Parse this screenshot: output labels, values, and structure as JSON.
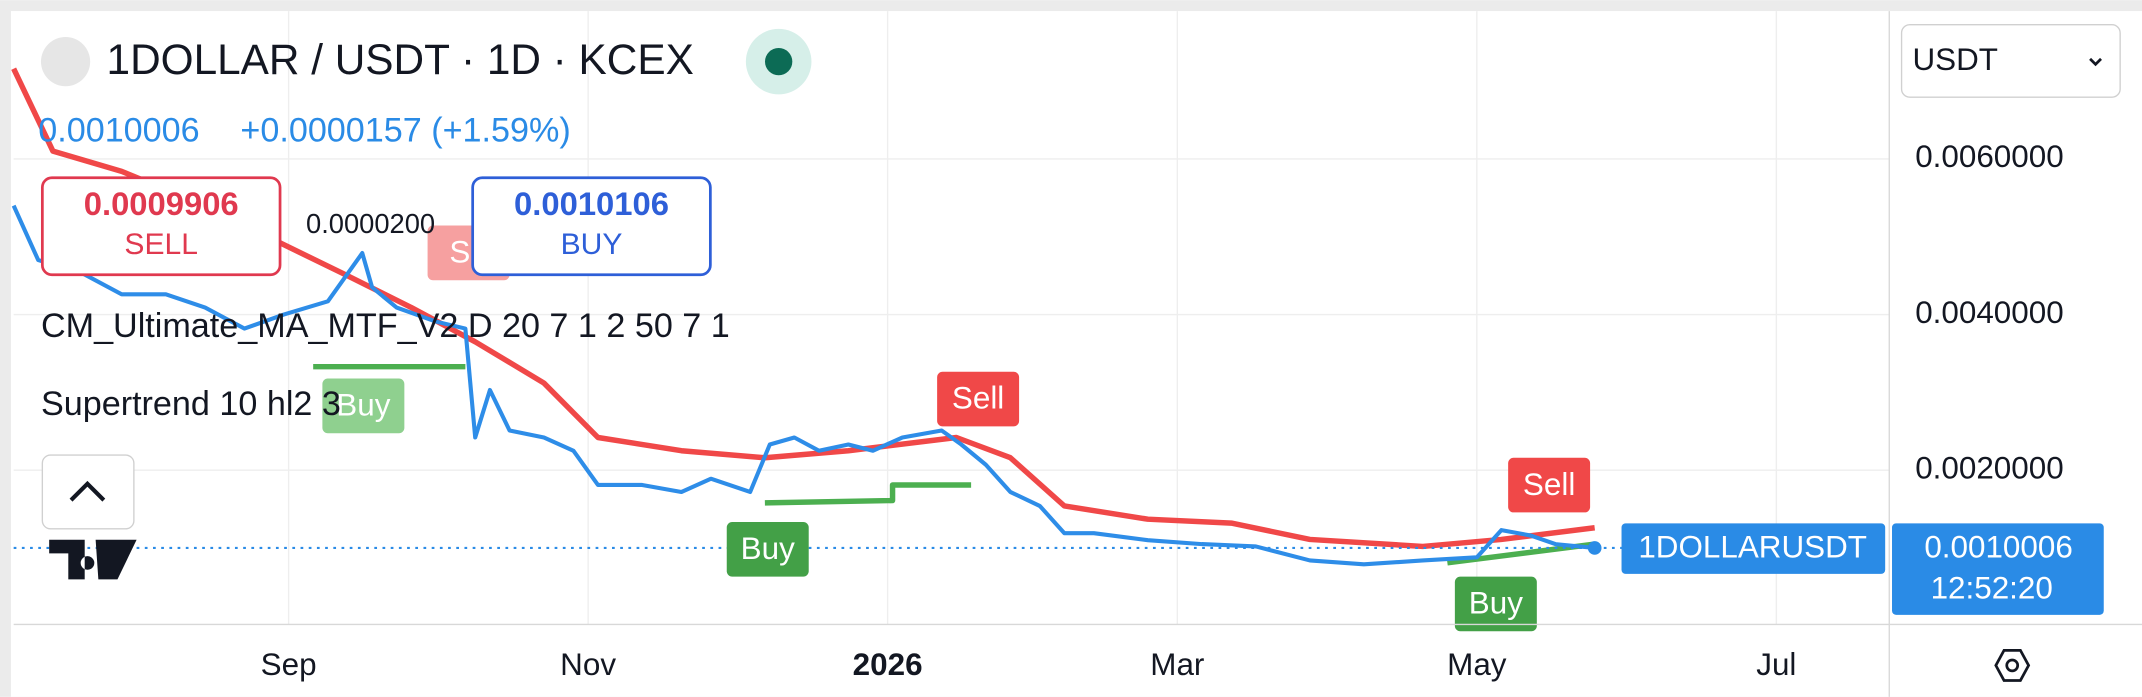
{
  "header": {
    "symbol": "1DOLLAR / USDT · 1D · KCEX",
    "price": "0.0010006",
    "change": "+0.0000157 (+1.59%)"
  },
  "trade": {
    "sell_price": "0.0009906",
    "sell_label": "SELL",
    "spread": "0.0000200",
    "buy_price": "0.0010106",
    "buy_label": "BUY"
  },
  "indicators": [
    "CM_Ultimate_MA_MTF_V2 D 20 7 1 2 50 7 1",
    "Supertrend 10 hl2 3"
  ],
  "currency": "USDT",
  "markers": [
    "Se",
    "Buy",
    "Sell",
    "Buy",
    "Sell",
    "Buy"
  ],
  "price_label": {
    "symbol": "1DOLLARUSDT",
    "countdown": "12:52:20"
  },
  "chart_data": {
    "type": "line",
    "xlim": [
      -56,
      326
    ],
    "xticks": [
      {
        "value": 0,
        "label": "Sep"
      },
      {
        "value": 61,
        "label": "Nov"
      },
      {
        "value": 122,
        "label": "2026"
      },
      {
        "value": 181,
        "label": "Mar"
      },
      {
        "value": 242,
        "label": "May"
      },
      {
        "value": 303,
        "label": "Jul"
      }
    ],
    "ylim": [
      0,
      0.0079
    ],
    "yticks": [
      {
        "value": 0.002,
        "label": "0.0020000"
      },
      {
        "value": 0.004,
        "label": "0.0040000"
      },
      {
        "value": 0.006,
        "label": "0.0060000"
      }
    ],
    "grid": true,
    "last_price": 0.0010006,
    "series": [
      {
        "color": "#f04848",
        "x": [
          -56,
          -48,
          -34,
          -17,
          -3,
          11,
          25,
          38,
          52,
          63,
          80,
          97,
          114,
          136,
          147,
          158,
          175,
          192,
          208,
          231,
          247,
          266
        ],
        "values": [
          0.00716,
          0.0061,
          0.00584,
          0.0054,
          0.00496,
          0.00453,
          0.00409,
          0.00365,
          0.00312,
          0.00242,
          0.00225,
          0.00216,
          0.00225,
          0.00242,
          0.00216,
          0.00154,
          0.00137,
          0.00132,
          0.00111,
          0.00102,
          0.00111,
          0.00126
        ]
      },
      {
        "color": "#4caf50",
        "x": [
          5,
          36,
          36,
          97,
          123,
          123,
          139,
          139,
          236,
          266
        ],
        "values": [
          0.00333,
          0.00333,
          null,
          0.00158,
          0.00161,
          0.00181,
          0.00181,
          null,
          0.00081,
          0.00105
        ]
      },
      {
        "color": "#2e8de8",
        "x": [
          -56,
          -51,
          -42,
          -34,
          -25,
          -17,
          -9,
          -1,
          8,
          15,
          17,
          22,
          30,
          36,
          38,
          41,
          45,
          52,
          58,
          63,
          72,
          80,
          86,
          94,
          98,
          103,
          108,
          114,
          119,
          125,
          133,
          137,
          142,
          147,
          153,
          158,
          164,
          175,
          186,
          197,
          208,
          219,
          231,
          242,
          247,
          253,
          258,
          266
        ],
        "values": [
          0.0054,
          0.0047,
          0.00453,
          0.00426,
          0.00426,
          0.00409,
          0.00382,
          0.004,
          0.00417,
          0.00479,
          0.00435,
          0.00409,
          0.00391,
          0.00382,
          0.00242,
          0.00303,
          0.00251,
          0.00242,
          0.00225,
          0.00181,
          0.00181,
          0.00172,
          0.00189,
          0.00172,
          0.00233,
          0.00242,
          0.00225,
          0.00233,
          0.00225,
          0.00242,
          0.00251,
          0.00233,
          0.00207,
          0.00172,
          0.00154,
          0.00119,
          0.00119,
          0.0011,
          0.00105,
          0.00102,
          0.00084,
          0.00079,
          0.00084,
          0.00088,
          0.00123,
          0.00116,
          0.00105,
          0.0010006
        ]
      }
    ]
  }
}
